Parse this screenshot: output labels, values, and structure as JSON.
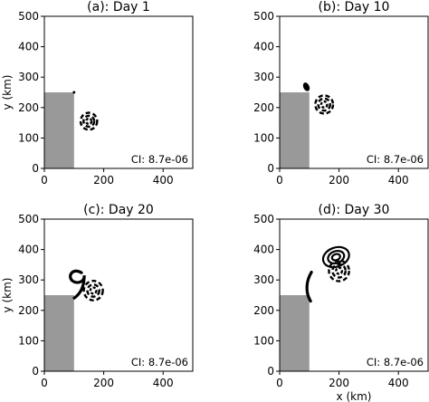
{
  "chart_data": [
    {
      "type": "contour",
      "title": "(a): Day 1",
      "xlabel": "",
      "ylabel": "y (km)",
      "xlim": [
        0,
        500
      ],
      "ylim": [
        0,
        500
      ],
      "xticks": [
        0,
        200,
        400
      ],
      "yticks": [
        0,
        100,
        200,
        300,
        400,
        500
      ],
      "annotation": "CI: 8.7e-06",
      "land_region": {
        "x": [
          0,
          100
        ],
        "y": [
          0,
          250
        ]
      },
      "positive_features": [
        {
          "kind": "dot",
          "cx": 100,
          "cy": 250,
          "r": 4
        }
      ],
      "negative_features": [
        {
          "kind": "rings",
          "cx": 150,
          "cy": 155,
          "radii": [
            28,
            18,
            9
          ]
        }
      ]
    },
    {
      "type": "contour",
      "title": "(b): Day 10",
      "xlabel": "",
      "ylabel": "",
      "xlim": [
        0,
        500
      ],
      "ylim": [
        0,
        500
      ],
      "xticks": [
        0,
        200,
        400
      ],
      "yticks": [
        0,
        100,
        200,
        300,
        400,
        500
      ],
      "annotation": "CI: 8.7e-06",
      "land_region": {
        "x": [
          0,
          100
        ],
        "y": [
          0,
          250
        ]
      },
      "positive_features": [
        {
          "kind": "blob",
          "cx": 90,
          "cy": 268,
          "rx": 10,
          "ry": 15
        }
      ],
      "negative_features": [
        {
          "kind": "rings",
          "cx": 150,
          "cy": 210,
          "radii": [
            30,
            20,
            10
          ]
        }
      ]
    },
    {
      "type": "contour",
      "title": "(c): Day 20",
      "xlabel": "",
      "ylabel": "y (km)",
      "xlim": [
        0,
        500
      ],
      "ylim": [
        0,
        500
      ],
      "xticks": [
        0,
        200,
        400
      ],
      "yticks": [
        0,
        100,
        200,
        300,
        400,
        500
      ],
      "annotation": "CI: 8.7e-06",
      "land_region": {
        "x": [
          0,
          100
        ],
        "y": [
          0,
          250
        ]
      },
      "positive_features": [
        {
          "kind": "nine",
          "cx": 113,
          "cy": 300
        }
      ],
      "negative_features": [
        {
          "kind": "rings",
          "cx": 165,
          "cy": 265,
          "radii": [
            32,
            20,
            10
          ]
        }
      ]
    },
    {
      "type": "contour",
      "title": "(d): Day 30",
      "xlabel": "x (km)",
      "ylabel": "",
      "xlim": [
        0,
        500
      ],
      "ylim": [
        0,
        500
      ],
      "xticks": [
        0,
        200,
        400
      ],
      "yticks": [
        0,
        100,
        200,
        300,
        400,
        500
      ],
      "annotation": "CI: 8.7e-06",
      "land_region": {
        "x": [
          0,
          100
        ],
        "y": [
          0,
          250
        ]
      },
      "positive_features": [
        {
          "kind": "streak",
          "cx": 98,
          "cy": 278
        },
        {
          "kind": "rings",
          "cx": 190,
          "cy": 375,
          "radii": [
            45,
            28,
            14
          ]
        }
      ],
      "negative_features": [
        {
          "kind": "rings",
          "cx": 200,
          "cy": 330,
          "radii": [
            34,
            22,
            10
          ]
        }
      ]
    }
  ],
  "colors": {
    "land": "#999999",
    "contour": "#000000",
    "axes": "#000000"
  }
}
